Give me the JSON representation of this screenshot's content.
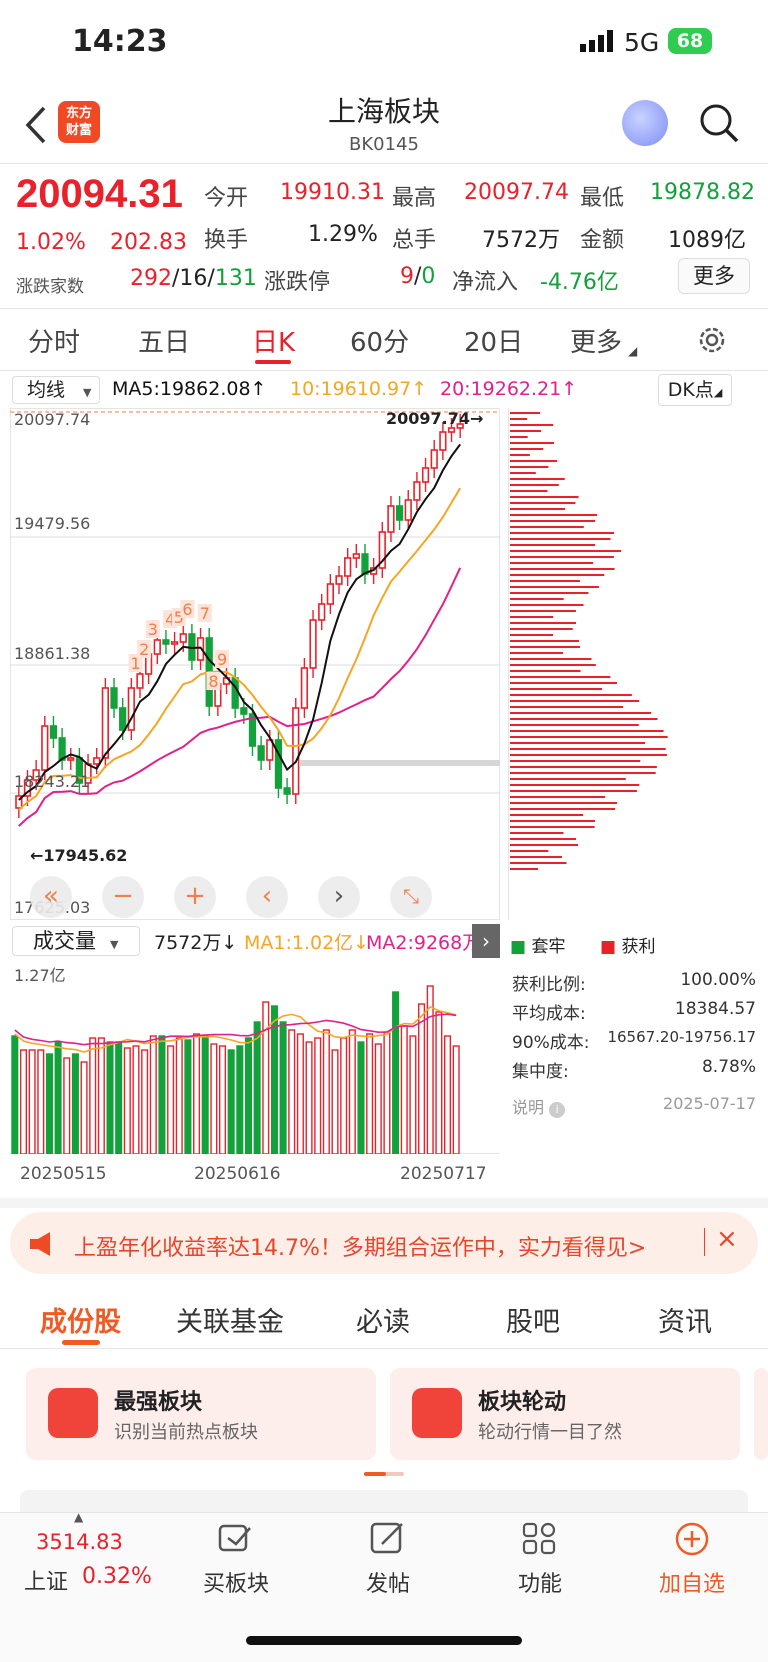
{
  "status": {
    "time": "14:23",
    "network": "5G",
    "battery": "68"
  },
  "header": {
    "logo_text_1": "东方",
    "logo_text_2": "财富",
    "title": "上海板块",
    "code": "BK0145"
  },
  "quote": {
    "price": "20094.31",
    "change_pct": "1.02%",
    "change": "202.83",
    "open_label": "今开",
    "open": "19910.31",
    "high_label": "最高",
    "high": "20097.74",
    "low_label": "最低",
    "low": "19878.82",
    "turnover_label": "换手",
    "turnover": "1.29%",
    "volume_label": "总手",
    "volume": "7572万",
    "amount_label": "金额",
    "amount": "1089亿",
    "breadth_label": "涨跌家数",
    "breadth_up": "292",
    "breadth_flat": "16",
    "breadth_down": "131",
    "limit_label": "涨跌停",
    "limit_up": "9",
    "limit_down": "0",
    "inflow_label": "净流入",
    "inflow": "-4.76亿",
    "more_label": "更多"
  },
  "ktabs": [
    "分时",
    "五日",
    "日K",
    "60分",
    "20日",
    "更多"
  ],
  "chart": {
    "ma_select": "均线",
    "ma5": "MA5:19862.08↑",
    "ma10": "10:19610.97↑",
    "ma20": "20:19262.21↑",
    "dk_label": "DK点",
    "y_labels": [
      "20097.74",
      "19479.56",
      "18861.38",
      "18243.21",
      "17625.03"
    ],
    "high_marker": "20097.74→",
    "low_marker": "←17945.62",
    "vol_select": "成交量",
    "vol_value": "7572万↓",
    "vol_ma1": "MA1:1.02亿↓",
    "vol_ma2": "MA2:9268万",
    "vol_max": "1.27亿",
    "dates": [
      "20250515",
      "20250616",
      "20250717"
    ]
  },
  "chip": {
    "legend_trapped": "套牢",
    "legend_profit": "获利",
    "stats": [
      {
        "label": "获利比例:",
        "value": "100.00%"
      },
      {
        "label": "平均成本:",
        "value": "18384.57"
      },
      {
        "label": "90%成本:",
        "value": "16567.20-19756.17"
      },
      {
        "label": "集中度:",
        "value": "8.78%"
      }
    ],
    "note_label": "说明",
    "date": "2025-07-17"
  },
  "banner": {
    "text": "上盈年化收益率达14.7%！多期组合运作中，实力看得见>"
  },
  "ltabs": [
    "成份股",
    "关联基金",
    "必读",
    "股吧",
    "资讯"
  ],
  "cards": [
    {
      "title": "最强板块",
      "sub": "识别当前热点板块"
    },
    {
      "title": "板块轮动",
      "sub": "轮动行情一目了然"
    }
  ],
  "bottom_nav": {
    "index_value": "3514.83",
    "index_name": "上证",
    "index_change": "0.32%",
    "items": [
      "买板块",
      "发帖",
      "功能",
      "加自选"
    ]
  },
  "chart_data": {
    "type": "candlestick",
    "x": [
      "20250515",
      "20250616",
      "20250717"
    ],
    "ylim": [
      17625.03,
      20097.74
    ],
    "close_last": 20094.31,
    "high": 20097.74,
    "low": 17945.62,
    "ma": {
      "MA5": 19862.08,
      "MA10": 19610.97,
      "MA20": 19262.21
    }
  },
  "colors": {
    "up": "#e8212b",
    "down": "#12a13a",
    "ma5": "#111111",
    "ma10": "#f5a623",
    "ma20": "#e0218a",
    "accent": "#f05a24"
  }
}
